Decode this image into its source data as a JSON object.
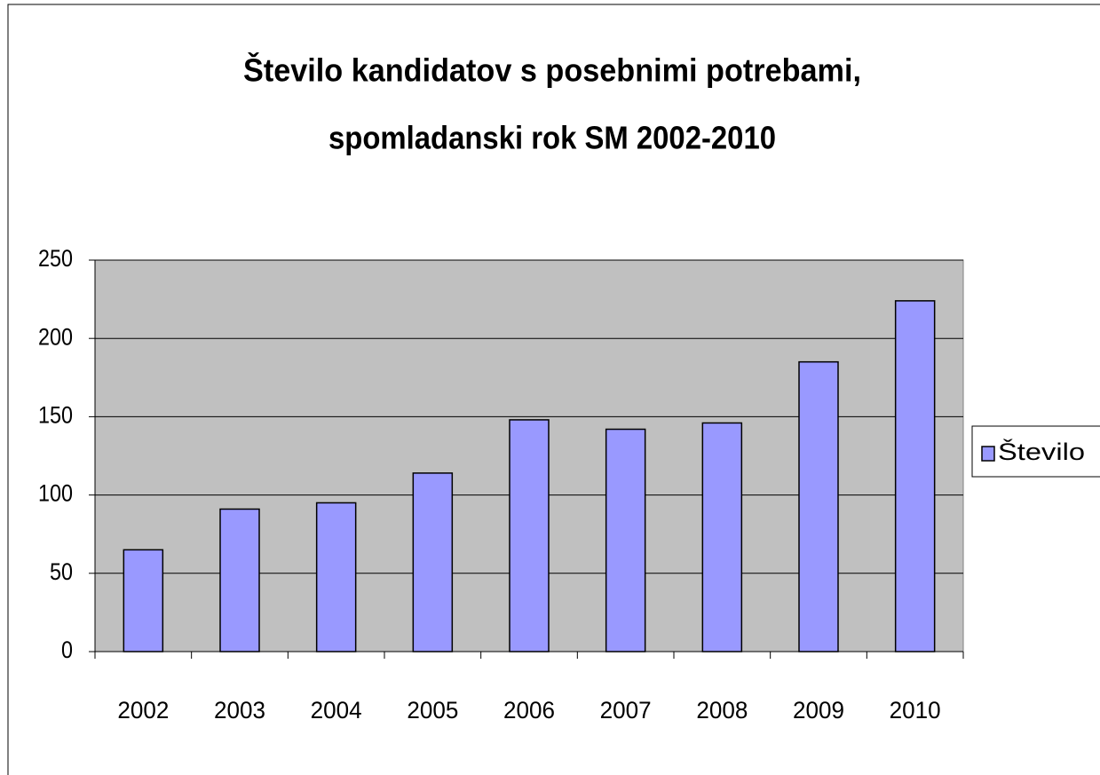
{
  "chart_data": {
    "type": "bar",
    "title": [
      "Število kandidatov s posebnimi potrebami,",
      "spomladanski rok SM 2002-2010"
    ],
    "categories": [
      "2002",
      "2003",
      "2004",
      "2005",
      "2006",
      "2007",
      "2008",
      "2009",
      "2010"
    ],
    "series": [
      {
        "name": "Število",
        "color": "#9999ff",
        "values": [
          65,
          91,
          95,
          114,
          148,
          142,
          146,
          185,
          224
        ]
      }
    ],
    "ylim": [
      0,
      250
    ],
    "yticks": [
      0,
      50,
      100,
      150,
      200,
      250
    ],
    "grid": true,
    "legend": "right"
  }
}
